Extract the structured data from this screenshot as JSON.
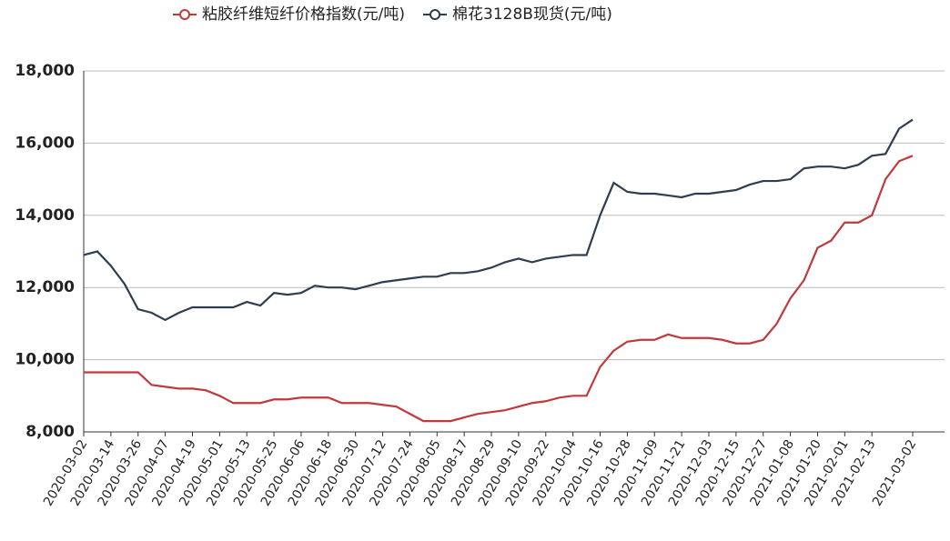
{
  "chart_data": {
    "type": "line",
    "categories": [
      "2020-03-02",
      null,
      "2020-03-14",
      null,
      "2020-03-26",
      null,
      "2020-04-07",
      null,
      "2020-04-19",
      null,
      "2020-05-01",
      null,
      "2020-05-13",
      null,
      "2020-05-25",
      null,
      "2020-06-06",
      null,
      "2020-06-18",
      null,
      "2020-06-30",
      null,
      "2020-07-12",
      null,
      "2020-07-24",
      null,
      "2020-08-05",
      null,
      "2020-08-17",
      null,
      "2020-08-29",
      null,
      "2020-09-10",
      null,
      "2020-09-22",
      null,
      "2020-10-04",
      null,
      "2020-10-16",
      null,
      "2020-10-28",
      null,
      "2020-11-09",
      null,
      "2020-11-21",
      null,
      "2020-12-03",
      null,
      "2020-12-15",
      null,
      "2020-12-27",
      null,
      "2021-01-08",
      null,
      "2021-01-20",
      null,
      "2021-02-01",
      null,
      "2021-02-13",
      null,
      null,
      "2021-03-02"
    ],
    "series": [
      {
        "name": "粘胶纤维短纤价格指数(元/吨)",
        "color": "#c0393b",
        "values": [
          9650,
          9650,
          9650,
          9650,
          9650,
          9300,
          9250,
          9200,
          9200,
          9150,
          9000,
          8800,
          8800,
          8800,
          8900,
          8900,
          8950,
          8950,
          8950,
          8800,
          8800,
          8800,
          8750,
          8700,
          8500,
          8300,
          8300,
          8300,
          8400,
          8500,
          8550,
          8600,
          8700,
          8800,
          8850,
          8950,
          9000,
          9000,
          9800,
          10250,
          10500,
          10550,
          10550,
          10700,
          10600,
          10600,
          10600,
          10550,
          10450,
          10450,
          10550,
          11000,
          11700,
          12200,
          13100,
          13300,
          13800,
          13800,
          14000,
          15000,
          15500,
          15650
        ]
      },
      {
        "name": "棉花3128B现货(元/吨)",
        "color": "#2c3e50",
        "values": [
          12900,
          13000,
          12600,
          12100,
          11400,
          11300,
          11100,
          11300,
          11450,
          11450,
          11450,
          11450,
          11600,
          11500,
          11850,
          11800,
          11850,
          12050,
          12000,
          12000,
          11950,
          12050,
          12150,
          12200,
          12250,
          12300,
          12300,
          12400,
          12400,
          12450,
          12550,
          12700,
          12800,
          12700,
          12800,
          12850,
          12900,
          12900,
          14000,
          14900,
          14650,
          14600,
          14600,
          14550,
          14500,
          14600,
          14600,
          14650,
          14700,
          14850,
          14950,
          14950,
          15000,
          15300,
          15350,
          15350,
          15300,
          15400,
          15650,
          15700,
          16400,
          16650
        ]
      }
    ],
    "ylim": [
      8000,
      18000
    ],
    "yticks": [
      {
        "value": 8000,
        "label": "8,000"
      },
      {
        "value": 10000,
        "label": "10,000"
      },
      {
        "value": 12000,
        "label": "12,000"
      },
      {
        "value": 14000,
        "label": "14,000"
      },
      {
        "value": 16000,
        "label": "16,000"
      },
      {
        "value": 18000,
        "label": "18,000"
      }
    ],
    "grid": true,
    "legend": "top"
  }
}
